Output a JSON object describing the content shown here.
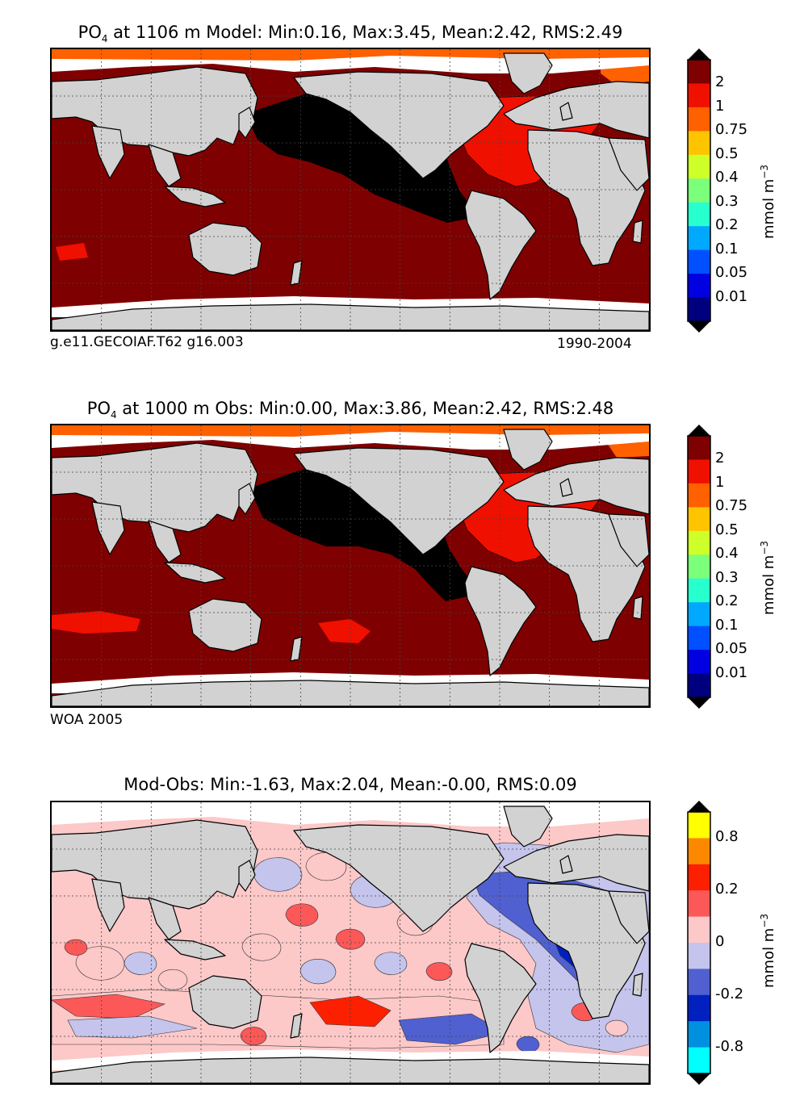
{
  "panels": [
    {
      "title": {
        "species": "PO",
        "sub": "4",
        "rest": " at 1106 m Model: Min:0.16, Max:3.45, Mean:2.42, RMS:2.49"
      },
      "caption_left": "g.e11.GECOIAF.T62 g16.003",
      "caption_right": "1990-2004",
      "colorbar": {
        "units": "mmol m",
        "units_sup": "−3",
        "ticks": [
          "0.01",
          "0.05",
          "0.1",
          "0.2",
          "0.3",
          "0.4",
          "0.5",
          "0.75",
          "1",
          "2"
        ],
        "colors": [
          "#00007f",
          "#0000e0",
          "#0050ff",
          "#00a8ff",
          "#28ffce",
          "#7cff7a",
          "#ceff29",
          "#ffc400",
          "#ff6000",
          "#f01000",
          "#7f0000"
        ]
      }
    },
    {
      "title": {
        "species": "PO",
        "sub": "4",
        "rest": " at 1000 m Obs: Min:0.00, Max:3.86, Mean:2.42, RMS:2.48"
      },
      "caption_left": "WOA 2005",
      "caption_right": "",
      "colorbar": {
        "units": "mmol m",
        "units_sup": "−3",
        "ticks": [
          "0.01",
          "0.05",
          "0.1",
          "0.2",
          "0.3",
          "0.4",
          "0.5",
          "0.75",
          "1",
          "2"
        ],
        "colors": [
          "#00007f",
          "#0000e0",
          "#0050ff",
          "#00a8ff",
          "#28ffce",
          "#7cff7a",
          "#ceff29",
          "#ffc400",
          "#ff6000",
          "#f01000",
          "#7f0000"
        ]
      }
    },
    {
      "title": {
        "species": "",
        "sub": "",
        "rest": "Mod-Obs: Min:-1.63, Max:2.04, Mean:-0.00, RMS:0.09"
      },
      "caption_left": "",
      "caption_right": "",
      "colorbar": {
        "units": "mmol m",
        "units_sup": "−3",
        "ticks": [
          "-0.8",
          "-0.2",
          "0",
          "0.2",
          "0.8"
        ],
        "colors": [
          "#00ffff",
          "#0090e0",
          "#0020c0",
          "#5060d0",
          "#c4c4ec",
          "#fcc8c8",
          "#fc5858",
          "#fc2000",
          "#fc8800",
          "#ffff00"
        ]
      }
    }
  ],
  "colors": {
    "land": "#d2d2d2",
    "nodata": "#ffffff",
    "deep_pacific": "#000000"
  }
}
